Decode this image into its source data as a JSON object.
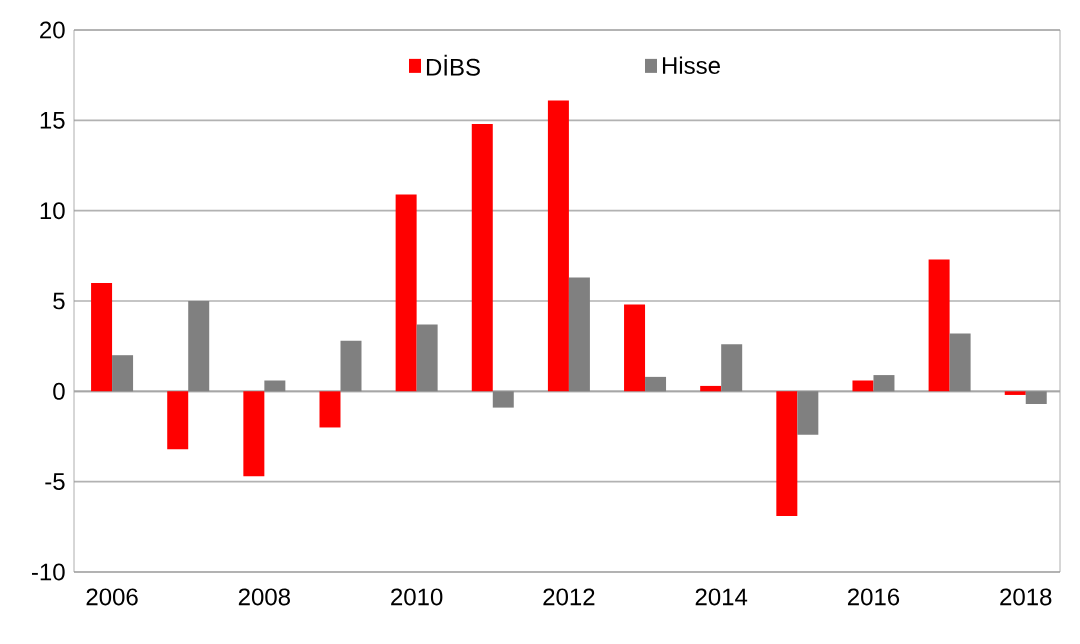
{
  "chart_data": {
    "type": "bar",
    "categories": [
      "2006",
      null,
      "2008",
      null,
      "2010",
      null,
      "2012",
      null,
      "2014",
      null,
      "2016",
      null,
      "2018"
    ],
    "series": [
      {
        "name": "DİBS",
        "color": "#ff0000",
        "values": [
          6.0,
          -3.2,
          -4.7,
          -2.0,
          10.9,
          14.8,
          16.1,
          4.8,
          0.3,
          -6.9,
          0.6,
          7.3,
          -0.2
        ]
      },
      {
        "name": "Hisse",
        "color": "#808080",
        "values": [
          2.0,
          5.0,
          0.6,
          2.8,
          3.7,
          -0.9,
          6.3,
          0.8,
          2.6,
          -2.4,
          0.9,
          3.2,
          -0.7
        ]
      }
    ],
    "ylim": [
      -10,
      20
    ],
    "yticks": [
      -10,
      -5,
      0,
      5,
      10,
      15,
      20
    ],
    "grid": "y",
    "legend": "top"
  }
}
